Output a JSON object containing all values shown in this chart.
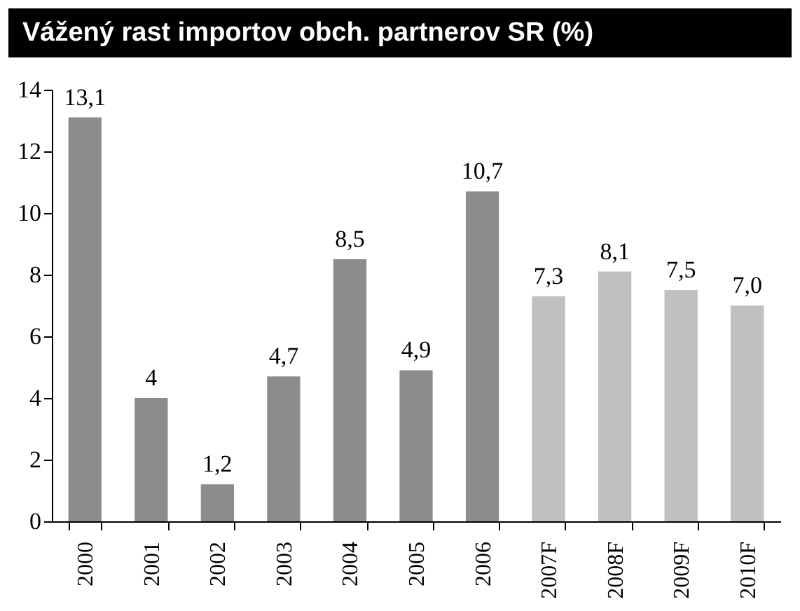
{
  "chart_data": {
    "type": "bar",
    "title": "Vážený rast importov obch. partnerov SR (%)",
    "categories": [
      "2000",
      "2001",
      "2002",
      "2003",
      "2004",
      "2005",
      "2006",
      "2007F",
      "2008F",
      "2009F",
      "2010F"
    ],
    "values": [
      13.1,
      4,
      1.2,
      4.7,
      8.5,
      4.9,
      10.7,
      7.3,
      8.1,
      7.5,
      7.0
    ],
    "colors": [
      "#8c8c8c",
      "#8c8c8c",
      "#8c8c8c",
      "#8c8c8c",
      "#8c8c8c",
      "#8c8c8c",
      "#8c8c8c",
      "#c0c0c0",
      "#c0c0c0",
      "#c0c0c0",
      "#c0c0c0"
    ],
    "value_labels": [
      "13,1",
      "4",
      "1,2",
      "4,7",
      "8,5",
      "4,9",
      "10,7",
      "7,3",
      "8,1",
      "7,5",
      "7,0"
    ],
    "ylim": [
      0,
      14
    ],
    "yticks": [
      0,
      2,
      4,
      6,
      8,
      10,
      12,
      14
    ],
    "grid": false
  }
}
